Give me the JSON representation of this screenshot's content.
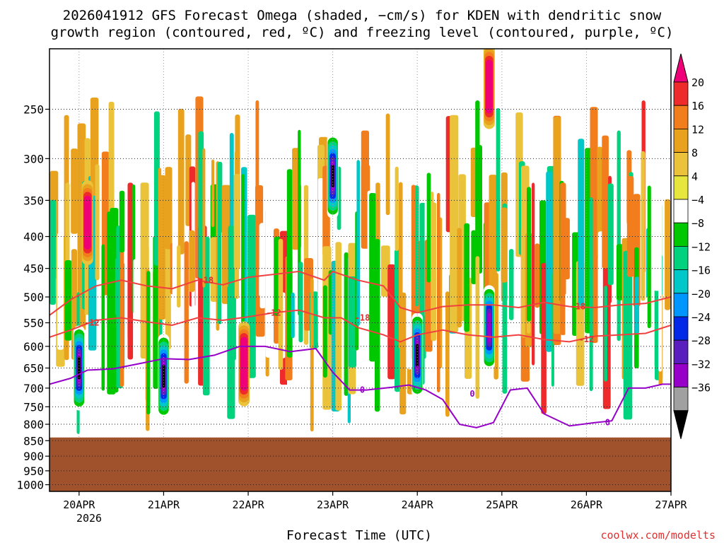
{
  "chart_data": {
    "type": "heatmap",
    "title_line1": "2026041912 GFS Forecast Omega (shaded, −cm/s) for KDEN with dendritic snow",
    "title_line2": "growth region (contoured, red, ºC) and freezing level (contoured, purple, ºC)",
    "xlabel": "Forecast Time (UTC)",
    "credit": "coolwx.com/modelts",
    "y_levels": [
      "250",
      "300",
      "350",
      "400",
      "450",
      "500",
      "550",
      "600",
      "650",
      "700",
      "750",
      "800",
      "850",
      "900",
      "950",
      "1000"
    ],
    "y_level_values": [
      250,
      300,
      350,
      400,
      450,
      500,
      550,
      600,
      650,
      700,
      750,
      800,
      850,
      900,
      950,
      1000
    ],
    "ylim": [
      200,
      1025
    ],
    "x_ticks": [
      "20APR",
      "21APR",
      "22APR",
      "23APR",
      "24APR",
      "25APR",
      "26APR",
      "27APR"
    ],
    "x_tick_days": [
      1,
      2,
      3,
      4,
      5,
      6,
      7,
      8
    ],
    "xlim": [
      0.65,
      8.0
    ],
    "year_label": "2026",
    "colorbar_labels": [
      "20",
      "16",
      "12",
      "8",
      "4",
      "−4",
      "−8",
      "−12",
      "−16",
      "−20",
      "−24",
      "−28",
      "−32",
      "−36"
    ],
    "colorbar_colors": [
      "#f00078",
      "#ee2a2a",
      "#f27d1c",
      "#e9a21e",
      "#ebc33a",
      "#e6e63c",
      "#ffffff",
      "#00c800",
      "#00d27d",
      "#00c8c8",
      "#0096ff",
      "#0028e6",
      "#5a1ebe",
      "#9600c8",
      "#a0a0a0",
      "#000000"
    ],
    "contour_labels": {
      "dgz_minus_18": "-18",
      "dgz_minus_12": "-12",
      "freezing": "0"
    },
    "contours": {
      "dgz_upper_-18C": {
        "day": [
          0.65,
          0.9,
          1.2,
          1.5,
          1.8,
          2.1,
          2.4,
          2.7,
          3.0,
          3.3,
          3.6,
          3.9,
          4.0,
          4.3,
          4.6,
          4.8,
          5.0,
          5.3,
          5.6,
          5.9,
          6.2,
          6.5,
          6.8,
          7.1,
          7.4,
          7.7,
          8.0
        ],
        "hPa": [
          535,
          505,
          480,
          470,
          480,
          485,
          470,
          478,
          465,
          460,
          455,
          470,
          455,
          470,
          480,
          520,
          530,
          518,
          515,
          515,
          520,
          510,
          518,
          520,
          515,
          512,
          500
        ]
      },
      "dgz_lower_-12C": {
        "day": [
          0.65,
          0.9,
          1.2,
          1.5,
          1.8,
          2.1,
          2.4,
          2.7,
          3.0,
          3.3,
          3.6,
          3.9,
          4.1,
          4.3,
          4.6,
          4.8,
          5.0,
          5.3,
          5.6,
          5.9,
          6.2,
          6.5,
          6.8,
          7.1,
          7.4,
          7.7,
          8.0
        ],
        "hPa": [
          580,
          565,
          545,
          540,
          548,
          555,
          540,
          545,
          538,
          530,
          525,
          540,
          540,
          560,
          575,
          590,
          575,
          565,
          575,
          580,
          575,
          585,
          590,
          578,
          575,
          572,
          555
        ]
      },
      "freezing_level_0C": {
        "day": [
          0.65,
          0.9,
          1.1,
          1.4,
          1.7,
          2.0,
          2.3,
          2.6,
          2.9,
          3.2,
          3.5,
          3.8,
          4.0,
          4.2,
          4.4,
          4.7,
          4.9,
          5.1,
          5.3,
          5.5,
          5.7,
          5.9,
          6.1,
          6.3,
          6.5,
          6.8,
          7.1,
          7.3,
          7.5,
          7.7,
          7.9,
          8.0
        ],
        "hPa": [
          690,
          675,
          655,
          652,
          640,
          628,
          630,
          620,
          600,
          600,
          612,
          605,
          660,
          705,
          705,
          698,
          692,
          705,
          730,
          800,
          810,
          795,
          705,
          700,
          770,
          805,
          795,
          790,
          700,
          700,
          690,
          690
        ]
      }
    },
    "omega_cells": [
      {
        "day": 1.0,
        "hPa": 650,
        "value": -36
      },
      {
        "day": 1.1,
        "hPa": 380,
        "value": 20
      },
      {
        "day": 2.0,
        "hPa": 670,
        "value": -36
      },
      {
        "day": 2.95,
        "hPa": 640,
        "value": 20
      },
      {
        "day": 4.0,
        "hPa": 320,
        "value": -36
      },
      {
        "day": 5.0,
        "hPa": 620,
        "value": -36
      },
      {
        "day": 5.85,
        "hPa": 560,
        "value": -32
      },
      {
        "day": 5.85,
        "hPa": 230,
        "value": 20
      }
    ]
  }
}
